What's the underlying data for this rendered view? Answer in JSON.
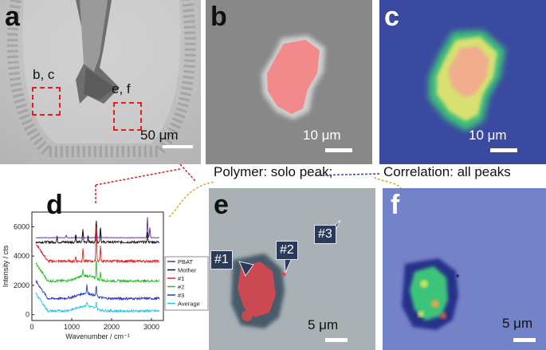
{
  "panels": {
    "a": {
      "label": "a",
      "box1_label": "b, c",
      "box2_label": "e, f",
      "scale": "50 μm"
    },
    "b": {
      "label": "b",
      "scale": "10 μm"
    },
    "c": {
      "label": "c",
      "scale": "10 μm"
    },
    "d": {
      "label": "d"
    },
    "e": {
      "label": "e",
      "scale": "5 μm",
      "callouts": [
        "#1",
        "#2",
        "#3"
      ]
    },
    "f": {
      "label": "f",
      "scale": "5 μm"
    }
  },
  "annotations": {
    "polymer": "Polymer: solo peak;",
    "correlation": "Correlation: all peaks"
  },
  "chart_data": {
    "type": "line",
    "xlabel": "Wavenumber / cm⁻¹",
    "ylabel": "Intensity / cts",
    "xlim": [
      0,
      3300
    ],
    "ylim": [
      -400,
      7000
    ],
    "xticks": [
      0,
      1000,
      2000,
      3000
    ],
    "yticks": [
      0,
      2000,
      4000,
      6000
    ],
    "legend_position": "right",
    "series": [
      {
        "name": "PBAT",
        "color": "#5b2c91",
        "baseline": 5250,
        "peaks": [
          [
            630,
            120
          ],
          [
            860,
            150
          ],
          [
            1100,
            200
          ],
          [
            1280,
            400
          ],
          [
            1410,
            150
          ],
          [
            1615,
            1300
          ],
          [
            1720,
            700
          ],
          [
            2900,
            1400
          ],
          [
            2960,
            700
          ]
        ]
      },
      {
        "name": "Mother",
        "color": "#111111",
        "baseline": 4950,
        "peaks": [
          [
            630,
            300
          ],
          [
            1100,
            500
          ],
          [
            1280,
            900
          ],
          [
            1410,
            350
          ],
          [
            1615,
            1500
          ],
          [
            1720,
            1000
          ],
          [
            2900,
            600
          ]
        ]
      },
      {
        "name": "#1",
        "color": "#e02020",
        "baseline": 3650,
        "peaks": [
          [
            1100,
            300
          ],
          [
            1280,
            900
          ],
          [
            1615,
            2600
          ],
          [
            1720,
            1000
          ]
        ]
      },
      {
        "name": "#2",
        "color": "#1fbe1f",
        "baseline": 2300,
        "peaks": [
          [
            1280,
            400
          ],
          [
            1615,
            1300
          ],
          [
            1720,
            500
          ]
        ]
      },
      {
        "name": "#3",
        "color": "#2536c8",
        "baseline": 1100,
        "peaks": [
          [
            1380,
            600
          ],
          [
            1615,
            700
          ]
        ]
      },
      {
        "name": "Average",
        "color": "#29c3e3",
        "baseline": 250,
        "peaks": [
          [
            1380,
            300
          ],
          [
            1615,
            500
          ]
        ]
      }
    ]
  }
}
